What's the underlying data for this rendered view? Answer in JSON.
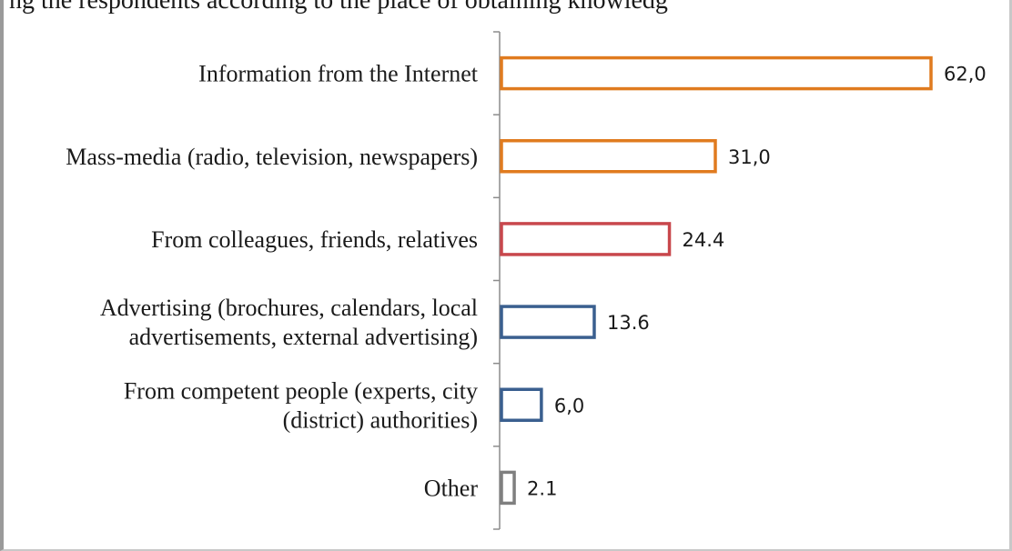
{
  "caption": "ng the respondents according to the place of obtaining knowledg",
  "chart_data": {
    "type": "bar",
    "orientation": "horizontal",
    "categories": [
      [
        "Information from the Internet"
      ],
      [
        "Mass-media (radio, television, newspapers)"
      ],
      [
        "From colleagues, friends, relatives"
      ],
      [
        "Advertising (brochures, calendars, local",
        "advertisements, external advertising)"
      ],
      [
        "From competent people (experts, city",
        "(district) authorities)"
      ],
      [
        "Other"
      ]
    ],
    "values": [
      62.0,
      31.0,
      24.4,
      13.6,
      6.0,
      2.1
    ],
    "value_labels": [
      "62,0",
      "31,0",
      "24.4",
      "13.6",
      "6,0",
      "2.1"
    ],
    "bar_colors": [
      "#e07b1f",
      "#e07b1f",
      "#c8474c",
      "#3a5f8f",
      "#3a5f8f",
      "#7f7f7f"
    ],
    "xlim": [
      0,
      62
    ],
    "title": "",
    "xlabel": "",
    "ylabel": "",
    "grid": false,
    "legend": "none"
  }
}
